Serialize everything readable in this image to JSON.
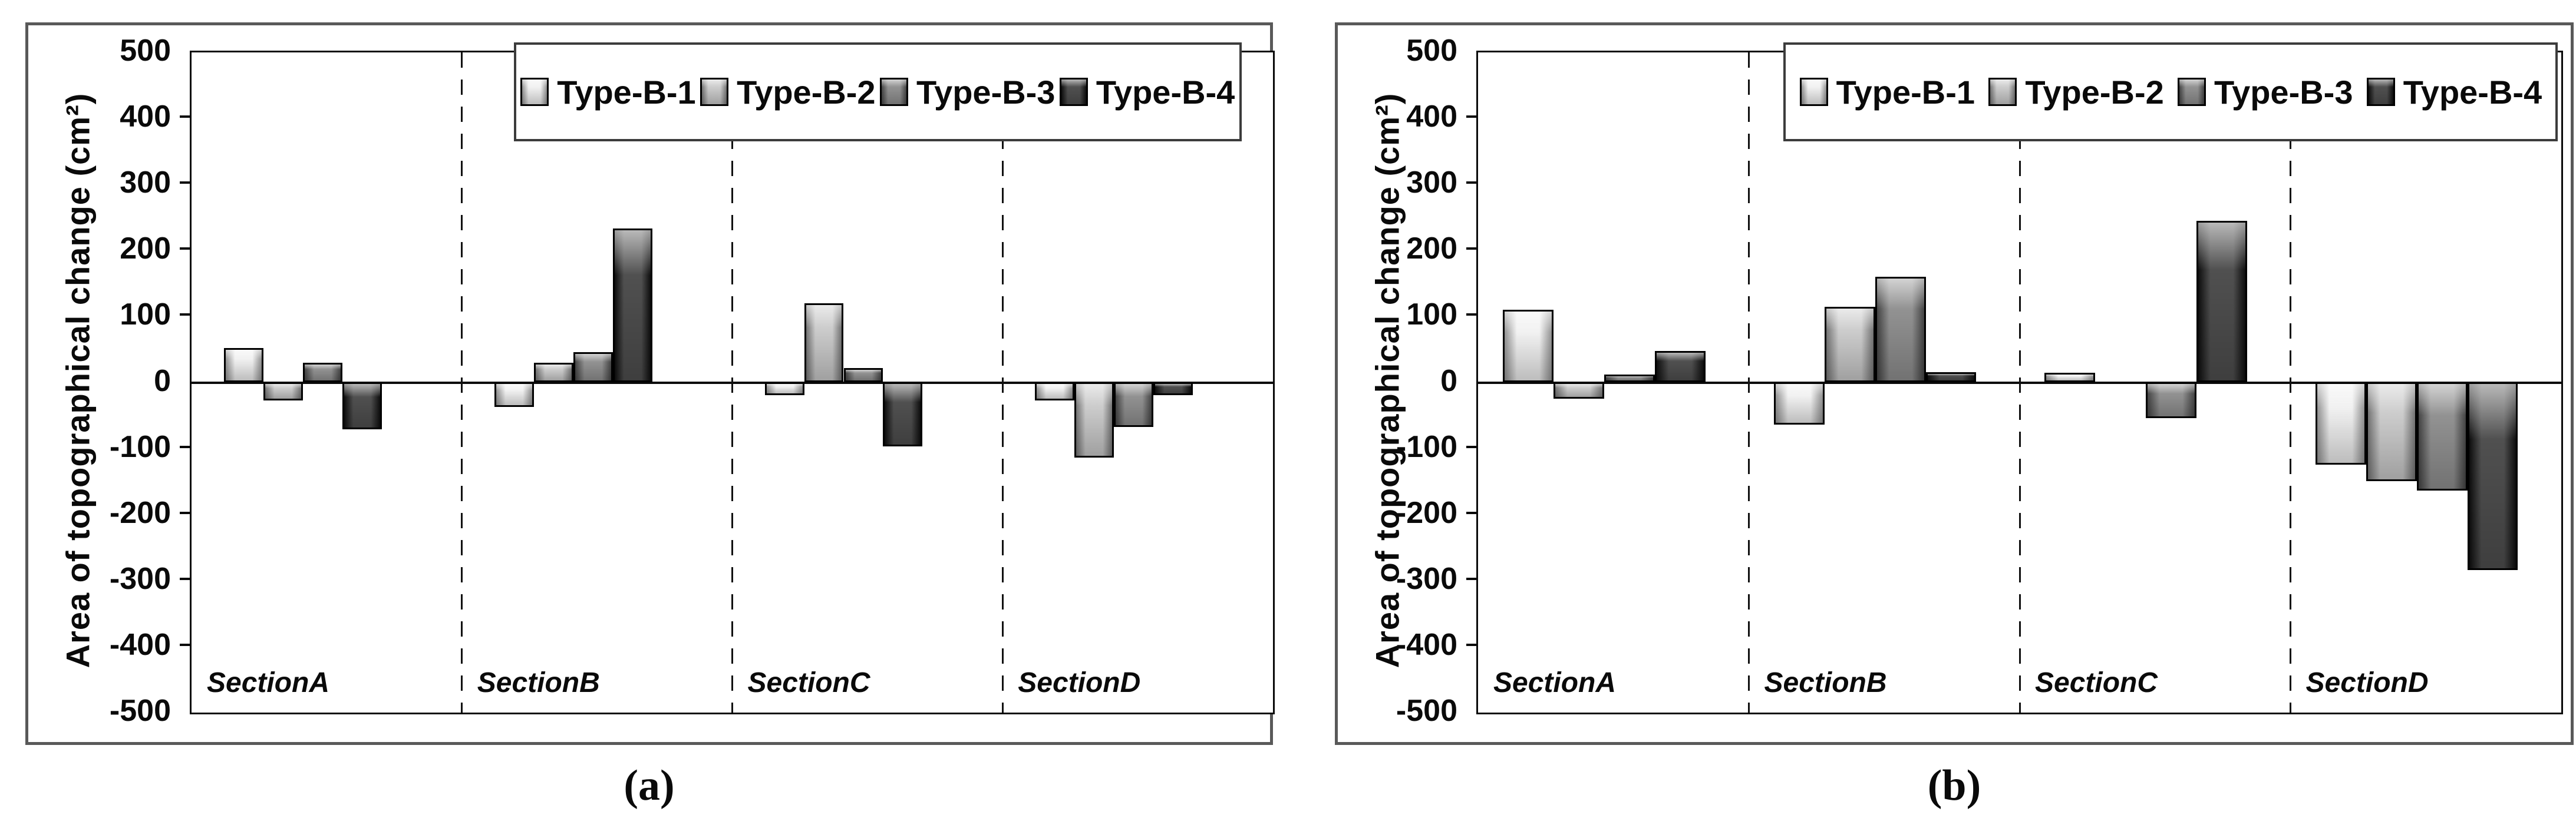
{
  "figure": {
    "background": "#ffffff",
    "box_border_color": "#595959",
    "axis_color": "#0a0a0a",
    "ylabel": "Area of topographical change (cm²)"
  },
  "legend": {
    "labels": [
      "Type-B-1",
      "Type-B-2",
      "Type-B-3",
      "Type-B-4"
    ]
  },
  "bar_colors": [
    "#ededed",
    "#bcbcbc",
    "#6e6e6e",
    "#161616"
  ],
  "chart_data": [
    {
      "type": "bar",
      "panel": "a",
      "caption": "(a)",
      "title": "",
      "xlabel": "",
      "ylabel": "Area of topographical change (cm²)",
      "ylim": [
        -500,
        500
      ],
      "yticks": [
        500,
        400,
        300,
        200,
        100,
        0,
        -100,
        -200,
        -300,
        -400,
        -500
      ],
      "grid": false,
      "legend_position": "top-right",
      "section_separators": "dashed",
      "categories": [
        "SectionA",
        "SectionB",
        "SectionC",
        "SectionD"
      ],
      "series": [
        {
          "name": "Type-B-1",
          "values": [
            52,
            -38,
            -20,
            -28
          ]
        },
        {
          "name": "Type-B-2",
          "values": [
            -28,
            30,
            120,
            -115
          ]
        },
        {
          "name": "Type-B-3",
          "values": [
            30,
            46,
            22,
            -68
          ]
        },
        {
          "name": "Type-B-4",
          "values": [
            -72,
            233,
            -98,
            -20
          ]
        }
      ],
      "layout": {
        "group_left_frac": 0.12,
        "bar_width_frac": 0.146
      }
    },
    {
      "type": "bar",
      "panel": "b",
      "caption": "(b)",
      "title": "",
      "xlabel": "",
      "ylabel": "Area of topographical change (cm²)",
      "ylim": [
        -500,
        500
      ],
      "yticks": [
        500,
        400,
        300,
        200,
        100,
        0,
        -100,
        -200,
        -300,
        -400,
        -500
      ],
      "grid": false,
      "legend_position": "top-right",
      "section_separators": "dashed",
      "categories": [
        "SectionA",
        "SectionB",
        "SectionC",
        "SectionD"
      ],
      "series": [
        {
          "name": "Type-B-1",
          "values": [
            110,
            -65,
            15,
            -125
          ]
        },
        {
          "name": "Type-B-2",
          "values": [
            -25,
            115,
            0,
            -150
          ]
        },
        {
          "name": "Type-B-3",
          "values": [
            12,
            160,
            -55,
            -165
          ]
        },
        {
          "name": "Type-B-4",
          "values": [
            48,
            16,
            245,
            -285
          ]
        }
      ],
      "layout": {
        "group_left_frac": 0.092,
        "bar_width_frac": 0.187
      }
    }
  ]
}
